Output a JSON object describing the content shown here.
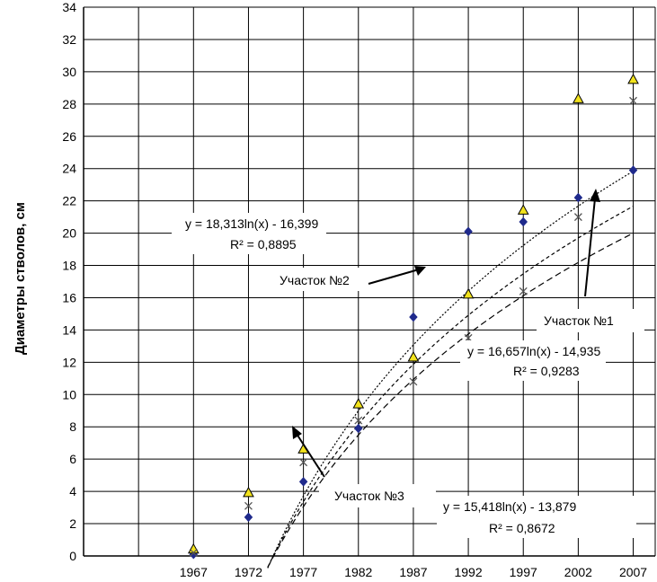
{
  "chart_data": {
    "type": "scatter",
    "title": "",
    "xlabel": "",
    "ylabel": "Диаметры стволов, см",
    "x": [
      1967,
      1972,
      1977,
      1982,
      1987,
      1992,
      1997,
      2002,
      2007
    ],
    "xlim": [
      1957,
      2009
    ],
    "ylim": [
      0,
      34
    ],
    "y_ticks": [
      0,
      2,
      4,
      6,
      8,
      10,
      12,
      14,
      16,
      18,
      20,
      22,
      24,
      26,
      28,
      30,
      32,
      34
    ],
    "x_tick_labels": [
      "1967",
      "1972",
      "1977",
      "1982",
      "1987",
      "1992",
      "1997",
      "2002",
      "2007"
    ],
    "grid": true,
    "series": [
      {
        "marker": "diamond",
        "color": "#1f2a8c",
        "values": [
          0.1,
          2.4,
          4.6,
          7.9,
          14.8,
          20.1,
          20.7,
          22.2,
          23.9
        ]
      },
      {
        "marker": "triangle",
        "color": "#f2e21c",
        "values": [
          0.4,
          3.9,
          6.6,
          9.4,
          12.3,
          16.2,
          21.4,
          28.3,
          29.5
        ]
      },
      {
        "marker": "cross",
        "color": "#555555",
        "values": [
          0.2,
          3.1,
          5.8,
          8.4,
          10.8,
          13.5,
          16.4,
          21.0,
          28.2
        ]
      }
    ],
    "trendlines": [
      {
        "equation": "y = 18,313ln(x) - 16,399",
        "r2": "R² = 0,8895",
        "a": 18.313,
        "b": -16.399,
        "style": "dotted"
      },
      {
        "equation": "y = 16,657ln(x) - 14,935",
        "r2": "R² = 0,9283",
        "a": 16.657,
        "b": -14.935,
        "style": "short-dash"
      },
      {
        "equation": "y = 15,418ln(x) - 13,879",
        "r2": "R² = 0,8672",
        "a": 15.418,
        "b": -13.879,
        "style": "long-dash"
      }
    ],
    "annotations": [
      "Участок №2",
      "Участок №1",
      "Участок №3"
    ]
  }
}
